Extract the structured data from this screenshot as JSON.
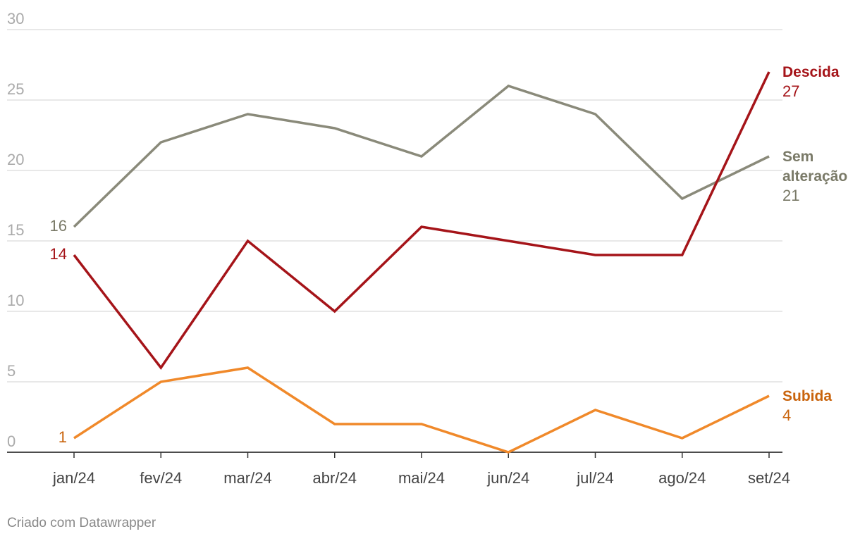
{
  "chart_data": {
    "type": "line",
    "title": "",
    "xlabel": "",
    "ylabel": "",
    "x": [
      "jan/24",
      "fev/24",
      "mar/24",
      "abr/24",
      "mai/24",
      "jun/24",
      "jul/24",
      "ago/24",
      "set/24"
    ],
    "ylim": [
      0,
      30
    ],
    "yticks": [
      0,
      5,
      10,
      15,
      20,
      25,
      30
    ],
    "grid": true,
    "legend": "direct labels at line ends",
    "series": [
      {
        "name": "Sem alteração",
        "name_lines": [
          "Sem",
          "alteração"
        ],
        "color": "#8a8a7a",
        "label_color": "#7a7a68",
        "values": [
          16,
          22,
          24,
          23,
          21,
          26,
          24,
          18,
          21
        ],
        "start_label": "16",
        "end_label": "21"
      },
      {
        "name": "Descida",
        "name_lines": [
          "Descida"
        ],
        "color": "#a51419",
        "label_color": "#a51419",
        "values": [
          14,
          6,
          15,
          10,
          16,
          15,
          14,
          14,
          27
        ],
        "start_label": "14",
        "end_label": "27"
      },
      {
        "name": "Subida",
        "name_lines": [
          "Subida"
        ],
        "color": "#f0892a",
        "label_color": "#c9640d",
        "values": [
          1,
          5,
          6,
          2,
          2,
          0,
          3,
          1,
          4
        ],
        "start_label": "1",
        "end_label": "4"
      }
    ]
  },
  "footer": {
    "credit": "Criado com Datawrapper"
  }
}
